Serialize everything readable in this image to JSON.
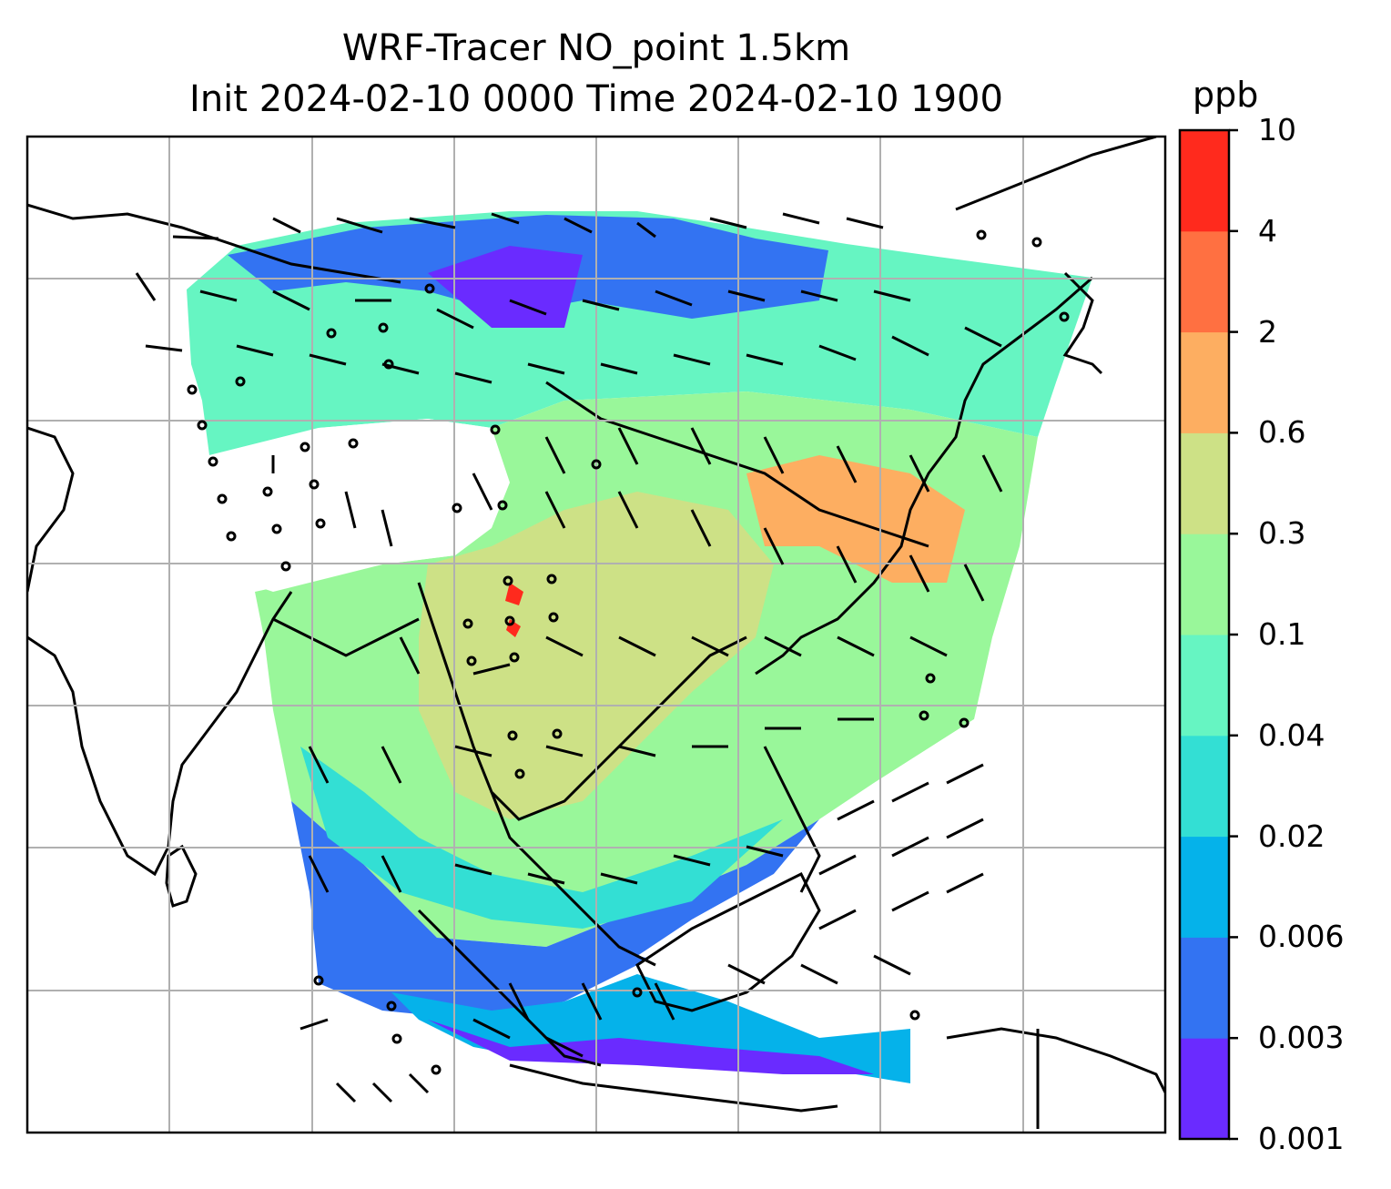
{
  "figure": {
    "title_line1": "WRF-Tracer NO_point 1.5km",
    "title_line2": "Init 2024-02-10 0000 Time 2024-02-10 1900"
  },
  "colorbar": {
    "unit": "ppb",
    "ticks": [
      "0.001",
      "0.003",
      "0.006",
      "0.02",
      "0.04",
      "0.1",
      "0.3",
      "0.6",
      "2",
      "4",
      "10"
    ],
    "colors": [
      "#6a2bff",
      "#3373f2",
      "#05b2ea",
      "#33dfd4",
      "#66f5c2",
      "#99f79a",
      "#cde186",
      "#fdae61",
      "#ff7041",
      "#ff2a1d"
    ]
  },
  "map": {
    "land_outline_color": "#000000",
    "gridline_color": "#b0b0b0",
    "grid": true,
    "wind_barbs": true,
    "concentration_field_shown": true
  }
}
